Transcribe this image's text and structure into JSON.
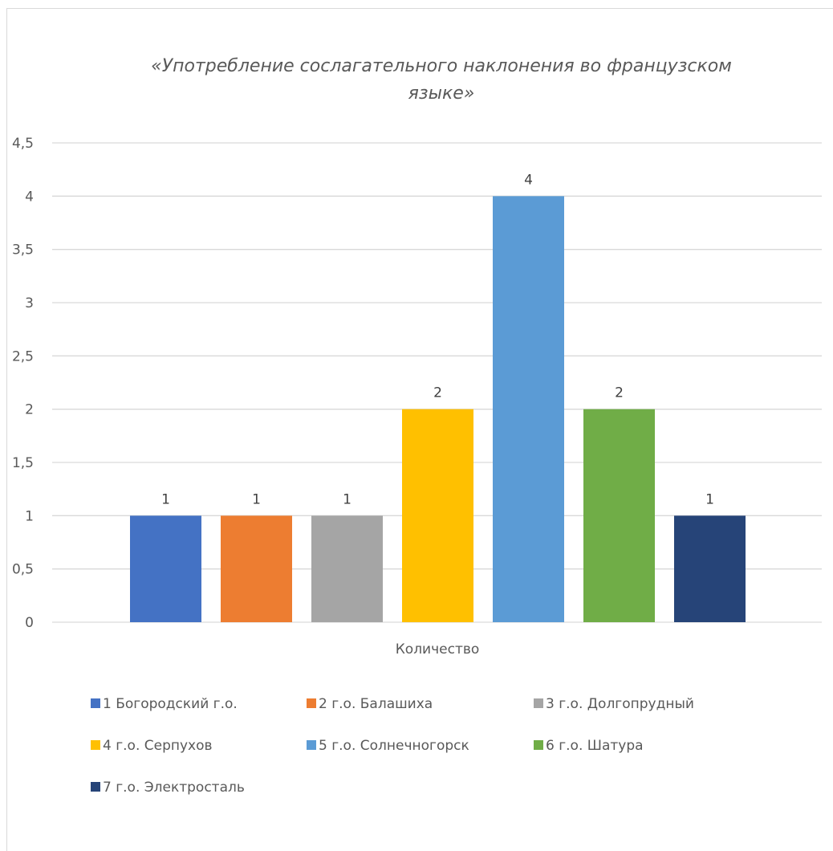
{
  "chart_data": {
    "type": "bar",
    "title": "«Употребление сослагательного наклонения во французском языке»",
    "title_lines": [
      "«Употребление сослагательного наклонения во французском",
      "языке»"
    ],
    "xlabel": "",
    "ylabel": "",
    "categories": [
      "Количество"
    ],
    "series": [
      {
        "name": "1 Богородский г.о.",
        "values": [
          1
        ],
        "color": "#4472c4"
      },
      {
        "name": "2 г.о. Балашиха",
        "values": [
          1
        ],
        "color": "#ed7d31"
      },
      {
        "name": "3 г.о. Долгопрудный",
        "values": [
          1
        ],
        "color": "#a5a5a5"
      },
      {
        "name": "4 г.о. Серпухов",
        "values": [
          2
        ],
        "color": "#ffc000"
      },
      {
        "name": "5 г.о. Солнечногорск",
        "values": [
          4
        ],
        "color": "#5b9bd5"
      },
      {
        "name": "6 г.о. Шатура",
        "values": [
          2
        ],
        "color": "#70ad47"
      },
      {
        "name": "7 г.о. Электросталь",
        "values": [
          1
        ],
        "color": "#264478"
      }
    ],
    "ylim": [
      0,
      4.5
    ],
    "yticks": [
      "0",
      "0,5",
      "1",
      "1,5",
      "2",
      "2,5",
      "3",
      "3,5",
      "4",
      "4,5"
    ],
    "data_labels": [
      "1",
      "1",
      "1",
      "2",
      "4",
      "2",
      "1"
    ],
    "grid": true,
    "legend_position": "bottom"
  }
}
